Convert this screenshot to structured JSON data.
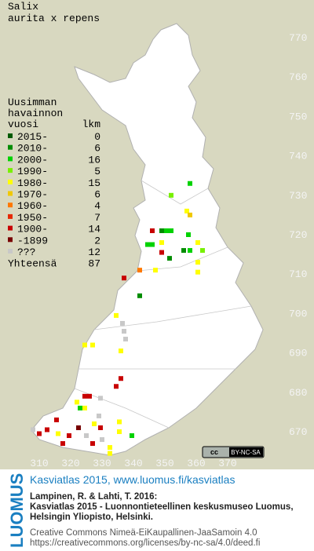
{
  "title": "Salix",
  "subtitle": "aurita x repens",
  "legend": {
    "header": [
      "Uusimman",
      "havainnon",
      "vuosi"
    ],
    "count_header": "lkm",
    "entries": [
      {
        "label": "2015-",
        "color": "#005a00",
        "count": 0
      },
      {
        "label": "2010-",
        "color": "#008c00",
        "count": 6
      },
      {
        "label": "2000-",
        "color": "#00d200",
        "count": 16
      },
      {
        "label": "1990-",
        "color": "#78f000",
        "count": 5
      },
      {
        "label": "1980-",
        "color": "#ffff00",
        "count": 15
      },
      {
        "label": "1970-",
        "color": "#f0c800",
        "count": 6
      },
      {
        "label": "1960-",
        "color": "#ff7800",
        "count": 4
      },
      {
        "label": "1950-",
        "color": "#e62800",
        "count": 7
      },
      {
        "label": "1900-",
        "color": "#c80000",
        "count": 14
      },
      {
        "label": "-1899",
        "color": "#780000",
        "count": 2
      },
      {
        "label": "???",
        "color": "#c8c8c8",
        "count": 12
      }
    ],
    "total_label": "Yhteensä",
    "total": 87
  },
  "xticks": [
    310,
    320,
    330,
    340,
    350,
    360,
    370
  ],
  "yticks": [
    670,
    680,
    690,
    700,
    710,
    720,
    730,
    740,
    750,
    760,
    770
  ],
  "xlim": [
    297.5,
    387.5
  ],
  "ylim": [
    648.5,
    780
  ],
  "squares": [
    {
      "x": 358,
      "y": 733,
      "period": 2
    },
    {
      "x": 352,
      "y": 730,
      "period": 3
    },
    {
      "x": 357,
      "y": 726,
      "period": 4
    },
    {
      "x": 358,
      "y": 725,
      "period": 5
    },
    {
      "x": 346,
      "y": 721,
      "period": 8
    },
    {
      "x": 349,
      "y": 721,
      "period": 1
    },
    {
      "x": 350.5,
      "y": 721,
      "period": 2
    },
    {
      "x": 352,
      "y": 721,
      "period": 2
    },
    {
      "x": 357.5,
      "y": 720,
      "period": 2
    },
    {
      "x": 344.5,
      "y": 717.5,
      "period": 2
    },
    {
      "x": 346,
      "y": 717.5,
      "period": 2
    },
    {
      "x": 349,
      "y": 718,
      "period": 4
    },
    {
      "x": 349,
      "y": 715.5,
      "period": 8
    },
    {
      "x": 351.5,
      "y": 714,
      "period": 1
    },
    {
      "x": 356,
      "y": 716,
      "period": 1
    },
    {
      "x": 358,
      "y": 716,
      "period": 2
    },
    {
      "x": 360.5,
      "y": 718,
      "period": 4
    },
    {
      "x": 362,
      "y": 716,
      "period": 3
    },
    {
      "x": 360.5,
      "y": 713,
      "period": 4
    },
    {
      "x": 360.5,
      "y": 710.5,
      "period": 4
    },
    {
      "x": 342,
      "y": 711,
      "period": 6
    },
    {
      "x": 347,
      "y": 711,
      "period": 4
    },
    {
      "x": 337,
      "y": 709,
      "period": 8
    },
    {
      "x": 342,
      "y": 704.5,
      "period": 1
    },
    {
      "x": 334.5,
      "y": 699.5,
      "period": 4
    },
    {
      "x": 336.5,
      "y": 697.5,
      "period": 10
    },
    {
      "x": 337,
      "y": 695.5,
      "period": 10
    },
    {
      "x": 337.5,
      "y": 693.5,
      "period": 10
    },
    {
      "x": 327,
      "y": 692,
      "period": 4
    },
    {
      "x": 324.5,
      "y": 692,
      "period": 4
    },
    {
      "x": 336,
      "y": 690.5,
      "period": 4
    },
    {
      "x": 336,
      "y": 683.5,
      "period": 8
    },
    {
      "x": 334.5,
      "y": 681.5,
      "period": 8
    },
    {
      "x": 324.5,
      "y": 679,
      "period": 8
    },
    {
      "x": 326,
      "y": 679,
      "period": 8
    },
    {
      "x": 329.5,
      "y": 678.5,
      "period": 10
    },
    {
      "x": 322,
      "y": 677.5,
      "period": 4
    },
    {
      "x": 323,
      "y": 676,
      "period": 2
    },
    {
      "x": 324.5,
      "y": 676,
      "period": 4
    },
    {
      "x": 329,
      "y": 674,
      "period": 10
    },
    {
      "x": 335.5,
      "y": 672.5,
      "period": 4
    },
    {
      "x": 327.5,
      "y": 672,
      "period": 4
    },
    {
      "x": 329.5,
      "y": 671,
      "period": 8
    },
    {
      "x": 335.5,
      "y": 670,
      "period": 4
    },
    {
      "x": 308,
      "y": 670.5,
      "period": 10
    },
    {
      "x": 310,
      "y": 669.5,
      "period": 8
    },
    {
      "x": 312.5,
      "y": 670.5,
      "period": 8
    },
    {
      "x": 315.5,
      "y": 673,
      "period": 8
    },
    {
      "x": 316,
      "y": 669.5,
      "period": 4
    },
    {
      "x": 319.5,
      "y": 669,
      "period": 8
    },
    {
      "x": 317.5,
      "y": 667,
      "period": 8
    },
    {
      "x": 325,
      "y": 669,
      "period": 10
    },
    {
      "x": 332.5,
      "y": 666,
      "period": 4
    },
    {
      "x": 332.5,
      "y": 664.5,
      "period": 4
    },
    {
      "x": 339.5,
      "y": 669,
      "period": 2
    },
    {
      "x": 327,
      "y": 667,
      "period": 8
    },
    {
      "x": 330,
      "y": 668,
      "period": 10
    },
    {
      "x": 322.5,
      "y": 671,
      "period": 9
    }
  ],
  "badge": {
    "cc": "cc",
    "text": "BY-NC-SA"
  },
  "footer": {
    "org": "LUOMUS",
    "headline": "Kasviatlas 2015, www.luomus.fi/kasviatlas",
    "citation": [
      "Lampinen, R. & Lahti, T. 2016:",
      "Kasviatlas 2015 - Luonnontieteellinen keskusmuseo Luomus,",
      "Helsingin Yliopisto, Helsinki."
    ],
    "license": [
      "Creative Commons Nimeä-EiKaupallinen-JaaSamoin 4.0",
      "https://creativecommons.org/licenses/by-nc-sa/4.0/deed.fi"
    ]
  }
}
